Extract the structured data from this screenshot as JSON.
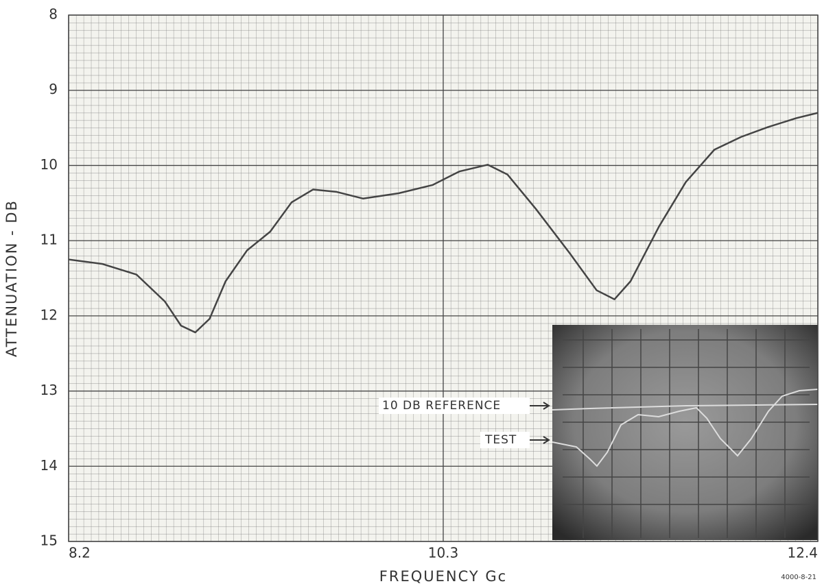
{
  "chart_data": {
    "type": "line",
    "x_label": "FREQUENCY Gc",
    "y_label": "ATTENUATION - DB",
    "x": [
      8.2,
      8.39,
      8.58,
      8.74,
      8.83,
      8.91,
      8.99,
      9.08,
      9.2,
      9.33,
      9.45,
      9.57,
      9.7,
      9.85,
      10.05,
      10.24,
      10.39,
      10.55,
      10.66,
      10.82,
      11.01,
      11.16,
      11.26,
      11.35,
      11.51,
      11.66,
      11.82,
      11.97,
      12.12,
      12.28,
      12.4
    ],
    "series": [
      {
        "color": "#444444",
        "values": [
          11.25,
          11.31,
          11.45,
          11.81,
          12.13,
          12.22,
          12.04,
          11.54,
          11.13,
          10.88,
          10.49,
          10.32,
          10.35,
          10.44,
          10.37,
          10.26,
          10.08,
          9.99,
          10.12,
          10.58,
          11.17,
          11.66,
          11.78,
          11.54,
          10.81,
          10.22,
          9.79,
          9.62,
          9.49,
          9.37,
          9.3
        ]
      }
    ],
    "xlim": [
      8.2,
      12.4
    ],
    "xticks": [
      8.2,
      10.3,
      12.4
    ],
    "ylim": [
      8,
      15
    ],
    "yticks": [
      8,
      9,
      10,
      11,
      12,
      13,
      14,
      15
    ],
    "y_inverted": true,
    "grid": true,
    "annotations": [
      "10 DB REFERENCE",
      "TEST"
    ],
    "footnote": "4000-8-21"
  }
}
